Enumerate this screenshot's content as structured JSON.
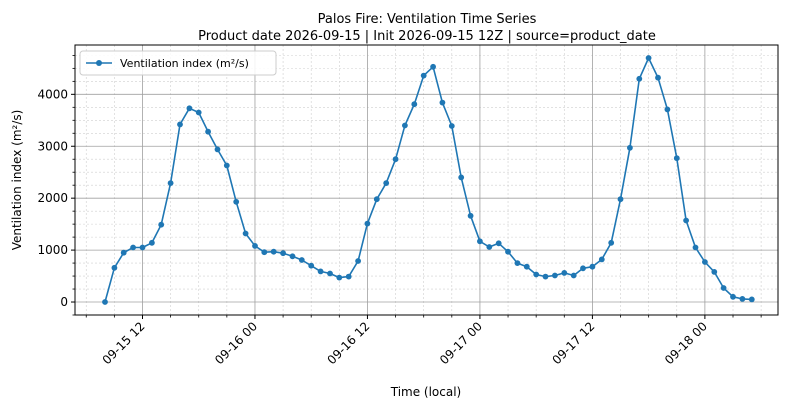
{
  "chart_data": {
    "type": "line",
    "title": "Palos Fire: Ventilation Time Series",
    "subtitle": "Product date 2026-09-15 | Init 2026-09-15 12Z | source=product_date",
    "xlabel": "Time (local)",
    "ylabel": "Ventilation index (m²/s)",
    "x_unit": "hours from 2026-09-15 00:00",
    "x_ticks": [
      {
        "x": 12,
        "label": "09-15 12"
      },
      {
        "x": 24,
        "label": "09-16 00"
      },
      {
        "x": 36,
        "label": "09-16 12"
      },
      {
        "x": 48,
        "label": "09-17 00"
      },
      {
        "x": 60,
        "label": "09-17 12"
      },
      {
        "x": 72,
        "label": "09-18 00"
      }
    ],
    "xlim": [
      4.8,
      79.8
    ],
    "ylim": [
      -250,
      4950
    ],
    "y_ticks": [
      0,
      1000,
      2000,
      3000,
      4000
    ],
    "grid": true,
    "legend_position": "top-left",
    "color": "#1f77b4",
    "series": [
      {
        "name": "Ventilation index (m²/s)",
        "x": [
          8,
          9,
          10,
          11,
          12,
          13,
          14,
          15,
          16,
          17,
          18,
          19,
          20,
          21,
          22,
          23,
          24,
          25,
          26,
          27,
          28,
          29,
          30,
          31,
          32,
          33,
          34,
          35,
          36,
          37,
          38,
          39,
          40,
          41,
          42,
          43,
          44,
          45,
          46,
          47,
          48,
          49,
          50,
          51,
          52,
          53,
          54,
          55,
          56,
          57,
          58,
          59,
          60,
          61,
          62,
          63,
          64,
          65,
          66,
          67,
          68,
          69,
          70,
          71,
          72,
          73,
          74,
          75,
          76,
          77
        ],
        "values": [
          0,
          660,
          950,
          1050,
          1050,
          1140,
          1490,
          2290,
          3420,
          3730,
          3650,
          3280,
          2940,
          2630,
          1930,
          1320,
          1080,
          960,
          970,
          940,
          880,
          810,
          700,
          590,
          550,
          470,
          490,
          790,
          1510,
          1980,
          2290,
          2750,
          3400,
          3810,
          4360,
          4530,
          3840,
          3390,
          2400,
          1660,
          1170,
          1060,
          1130,
          970,
          750,
          680,
          530,
          490,
          510,
          560,
          510,
          650,
          680,
          820,
          1140,
          1980,
          2970,
          4300,
          4700,
          4320,
          3710,
          2770,
          1570,
          1050,
          770,
          580,
          270,
          100,
          60,
          50
        ]
      }
    ]
  }
}
